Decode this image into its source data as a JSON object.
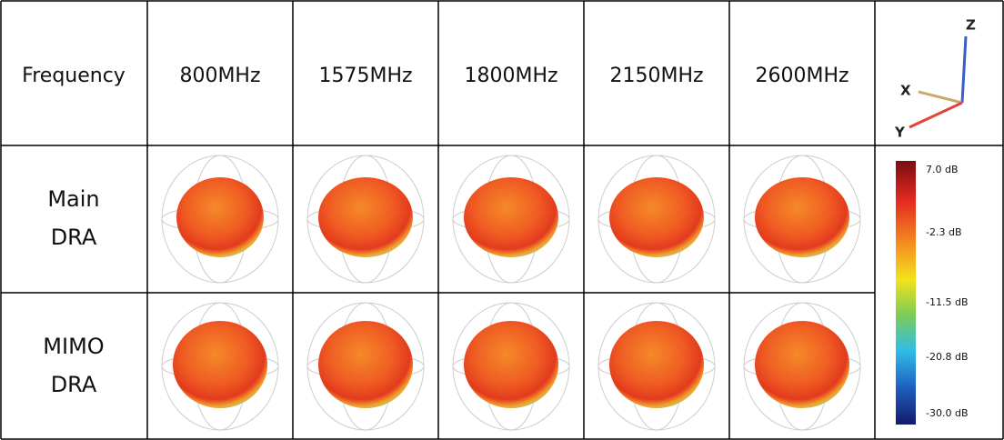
{
  "table": {
    "header": [
      "Frequency",
      "800MHz",
      "1575MHz",
      "1800MHz",
      "2150MHz",
      "2600MHz"
    ],
    "rows": [
      {
        "label": [
          "Main",
          "DRA"
        ]
      },
      {
        "label": [
          "MIMO",
          "DRA"
        ]
      }
    ]
  },
  "axes": {
    "z": "Z",
    "x": "X",
    "y": "Y"
  },
  "legend": {
    "labels": [
      "7.0 dB",
      "-2.3 dB",
      "-11.5 dB",
      "-20.8 dB",
      "-30.0 dB"
    ]
  }
}
